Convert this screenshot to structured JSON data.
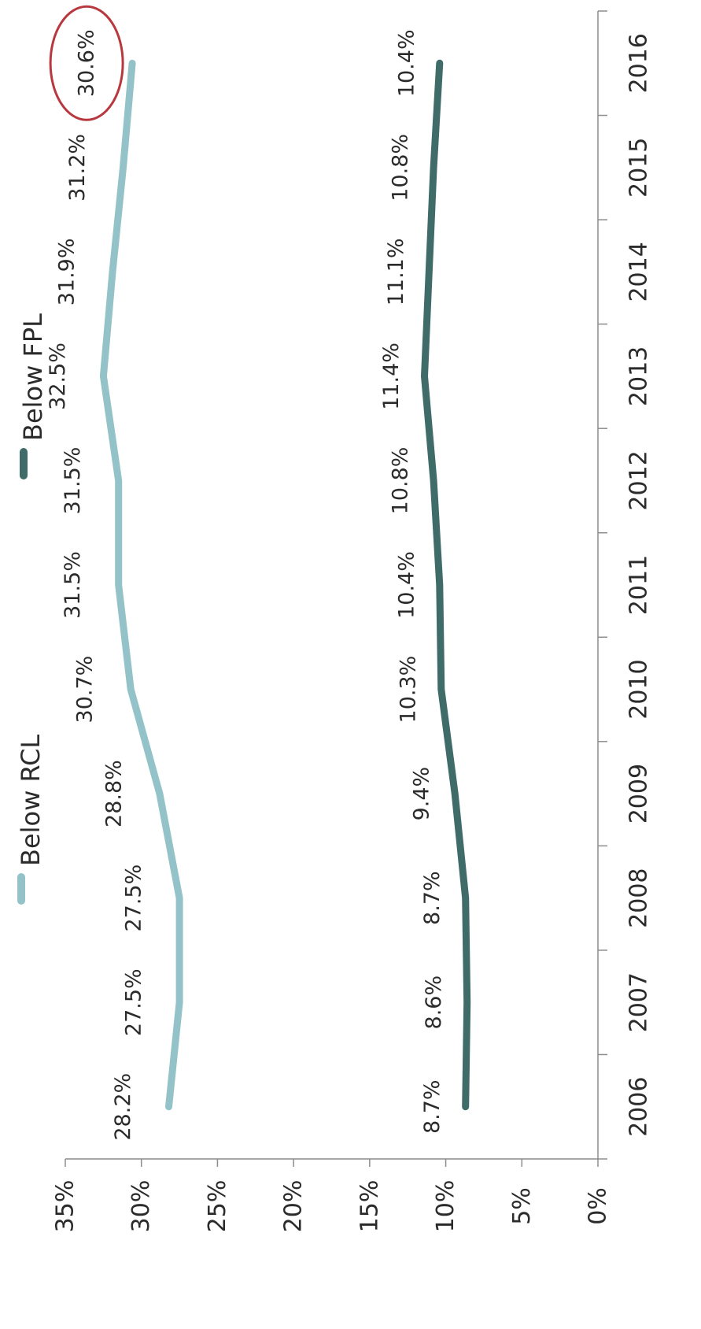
{
  "chart_data": {
    "type": "line",
    "orientation": "rotated-90-clockwise",
    "x": [
      "2006",
      "2007",
      "2008",
      "2009",
      "2010",
      "2011",
      "2012",
      "2013",
      "2014",
      "2015",
      "2016"
    ],
    "series": [
      {
        "name": "Below RCL",
        "color": "#93c3c9",
        "values": [
          28.2,
          27.5,
          27.5,
          28.8,
          30.7,
          31.5,
          31.5,
          32.5,
          31.9,
          31.2,
          30.6
        ],
        "labels": [
          "28.2%",
          "27.5%",
          "27.5%",
          "28.8%",
          "30.7%",
          "31.5%",
          "31.5%",
          "32.5%",
          "31.9%",
          "31.2%",
          "30.6%"
        ]
      },
      {
        "name": "Below FPL",
        "color": "#3f6b69",
        "values": [
          8.7,
          8.6,
          8.7,
          9.4,
          10.3,
          10.4,
          10.8,
          11.4,
          11.1,
          10.8,
          10.4
        ],
        "labels": [
          "8.7%",
          "8.6%",
          "8.7%",
          "9.4%",
          "10.3%",
          "10.4%",
          "10.8%",
          "11.4%",
          "11.1%",
          "10.8%",
          "10.4%"
        ]
      }
    ],
    "ylim": [
      0,
      35
    ],
    "yticks": [
      0,
      5,
      10,
      15,
      20,
      25,
      30,
      35
    ],
    "ytick_labels": [
      "0%",
      "5%",
      "10%",
      "15%",
      "20%",
      "25%",
      "30%",
      "35%"
    ],
    "grid": false,
    "legend_position": "top",
    "annotation": {
      "circled_label": "30.6%",
      "color": "#b8383f"
    }
  }
}
